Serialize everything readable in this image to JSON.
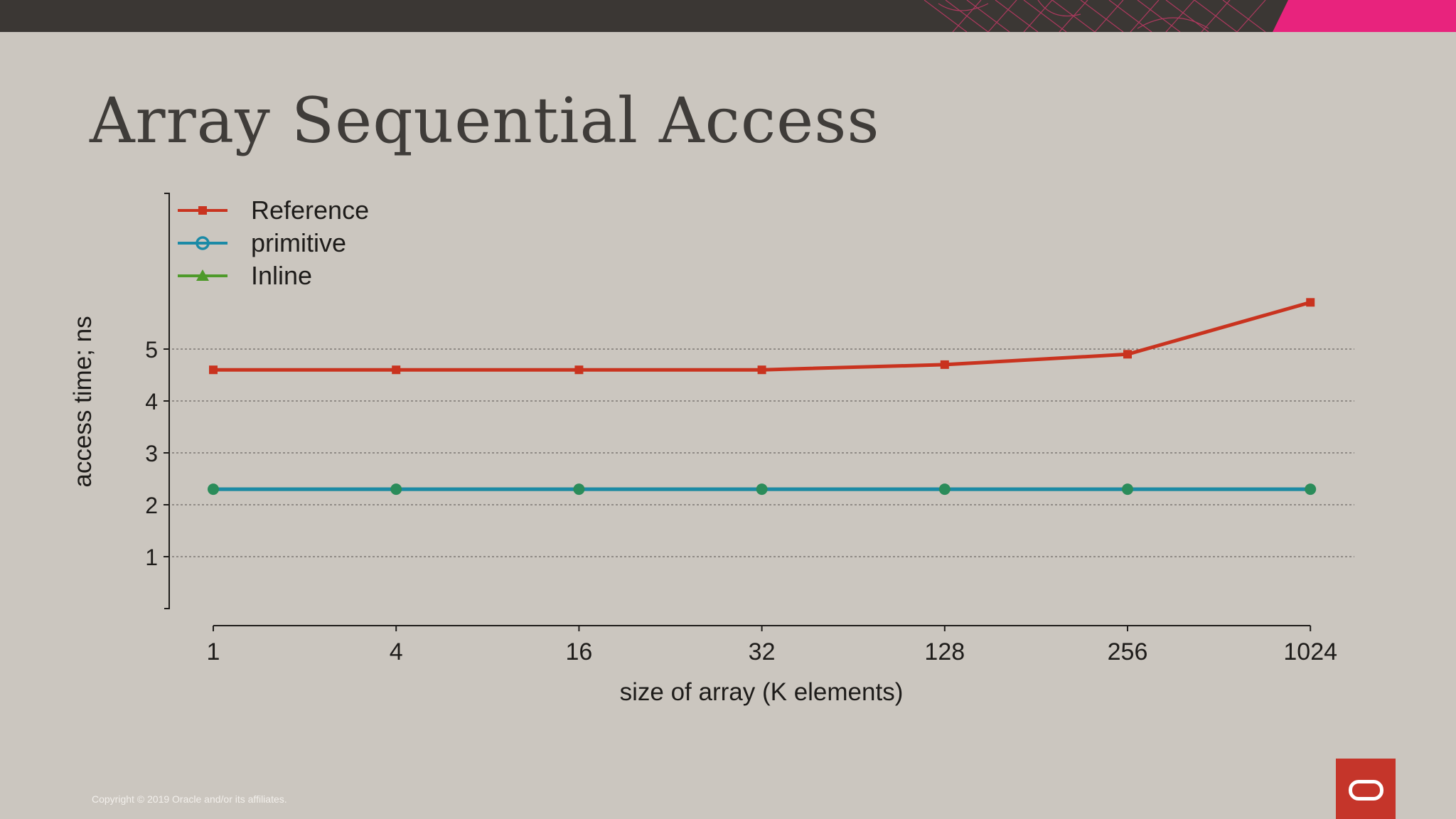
{
  "slide": {
    "title": "Array Sequential Access",
    "copyright": "Copyright © 2019 Oracle and/or its affiliates."
  },
  "colors": {
    "background": "#cbc6bf",
    "topbar": "#3b3734",
    "accent_pink": "#e8237d",
    "logo_red": "#c5352a",
    "reference": "#c9331f",
    "primitive": "#1b8aa6",
    "inline": "#4e9a2a"
  },
  "icons": {
    "logo": "oracle-logo-icon"
  },
  "chart_data": {
    "type": "line",
    "title": "",
    "xlabel": "size of array (K elements)",
    "ylabel": "access time; ns",
    "categories": [
      "1",
      "4",
      "16",
      "32",
      "128",
      "256",
      "1024"
    ],
    "yticks": [
      1,
      2,
      3,
      4,
      5
    ],
    "ylim": [
      0,
      8
    ],
    "grid": "horizontal dashed",
    "legend_position": "top-left",
    "series": [
      {
        "name": "Reference",
        "marker": "square",
        "color": "#c9331f",
        "values": [
          4.6,
          4.6,
          4.6,
          4.6,
          4.7,
          4.9,
          5.9
        ]
      },
      {
        "name": "primitive",
        "marker": "circle",
        "color": "#1b8aa6",
        "values": [
          2.3,
          2.3,
          2.3,
          2.3,
          2.3,
          2.3,
          2.3
        ]
      },
      {
        "name": "Inline",
        "marker": "triangle",
        "color": "#4e9a2a",
        "values": [
          2.3,
          2.3,
          2.3,
          2.3,
          2.3,
          2.3,
          2.3
        ]
      }
    ]
  }
}
